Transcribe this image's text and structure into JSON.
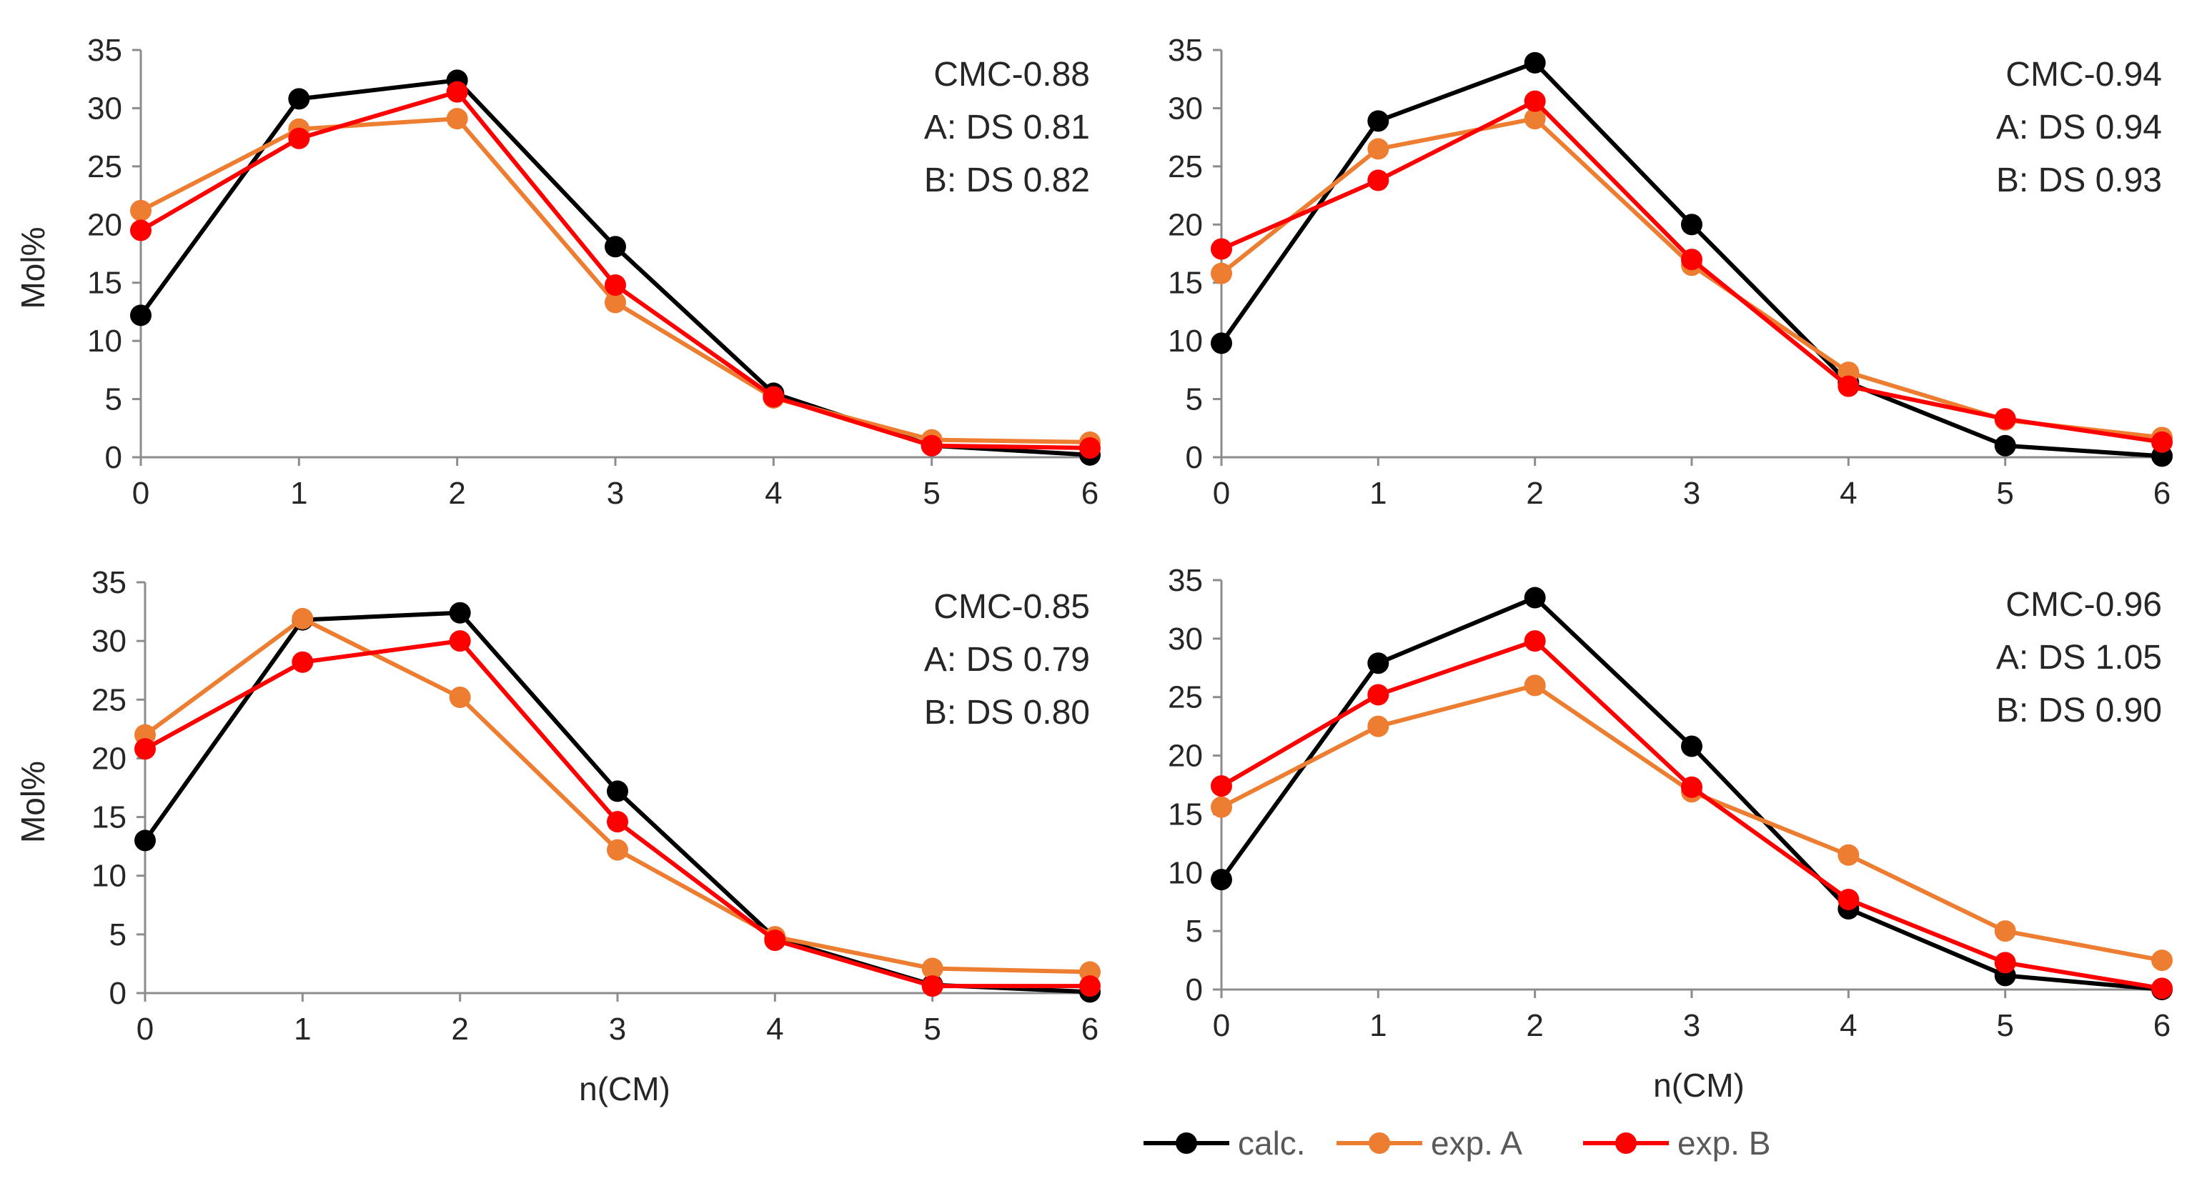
{
  "chart_data": [
    {
      "type": "line",
      "panel": "top-left",
      "title": "CMC-0.88",
      "annotations": [
        "CMC-0.88",
        "A: DS 0.81",
        "B: DS 0.82"
      ],
      "xlabel": "",
      "ylabel": "Mol%",
      "x": [
        0,
        1,
        2,
        3,
        4,
        5,
        6
      ],
      "xticks": [
        "0",
        "1",
        "2",
        "3",
        "4",
        "5",
        "6"
      ],
      "ylim": [
        0,
        35
      ],
      "yticks": [
        "0",
        "5",
        "10",
        "15",
        "20",
        "25",
        "30",
        "35"
      ],
      "grid": false,
      "series": [
        {
          "name": "calc.",
          "color": "#000000",
          "values": [
            12.2,
            30.8,
            32.4,
            18.1,
            5.5,
            1.0,
            0.2
          ]
        },
        {
          "name": "exp. A",
          "color": "#ED7D31",
          "values": [
            21.2,
            28.2,
            29.1,
            13.3,
            5.1,
            1.5,
            1.3
          ]
        },
        {
          "name": "exp. B",
          "color": "#FF0000",
          "values": [
            19.5,
            27.4,
            31.4,
            14.8,
            5.2,
            1.0,
            0.8
          ]
        }
      ]
    },
    {
      "type": "line",
      "panel": "top-right",
      "title": "CMC-0.94",
      "annotations": [
        "CMC-0.94",
        "A: DS 0.94",
        "B: DS 0.93"
      ],
      "xlabel": "",
      "ylabel": "",
      "x": [
        0,
        1,
        2,
        3,
        4,
        5,
        6
      ],
      "xticks": [
        "0",
        "1",
        "2",
        "3",
        "4",
        "5",
        "6"
      ],
      "ylim": [
        0,
        35
      ],
      "yticks": [
        "0",
        "5",
        "10",
        "15",
        "20",
        "25",
        "30",
        "35"
      ],
      "grid": false,
      "series": [
        {
          "name": "calc.",
          "color": "#000000",
          "values": [
            9.8,
            28.9,
            33.9,
            20.0,
            6.4,
            1.0,
            0.1
          ]
        },
        {
          "name": "exp. A",
          "color": "#ED7D31",
          "values": [
            15.8,
            26.5,
            29.1,
            16.5,
            7.3,
            3.2,
            1.7
          ]
        },
        {
          "name": "exp. B",
          "color": "#FF0000",
          "values": [
            17.9,
            23.8,
            30.6,
            17.0,
            6.1,
            3.3,
            1.3
          ]
        }
      ]
    },
    {
      "type": "line",
      "panel": "bottom-left",
      "title": "CMC-0.85",
      "annotations": [
        "CMC-0.85",
        "A: DS 0.79",
        "B: DS 0.80"
      ],
      "xlabel": "n(CM)",
      "ylabel": "Mol%",
      "x": [
        0,
        1,
        2,
        3,
        4,
        5,
        6
      ],
      "xticks": [
        "0",
        "1",
        "2",
        "3",
        "4",
        "5",
        "6"
      ],
      "ylim": [
        0,
        35
      ],
      "yticks": [
        "0",
        "5",
        "10",
        "15",
        "20",
        "25",
        "30",
        "35"
      ],
      "grid": false,
      "series": [
        {
          "name": "calc.",
          "color": "#000000",
          "values": [
            13.0,
            31.8,
            32.4,
            17.2,
            4.7,
            0.7,
            0.1
          ]
        },
        {
          "name": "exp. A",
          "color": "#ED7D31",
          "values": [
            22.0,
            31.9,
            25.2,
            12.2,
            4.8,
            2.1,
            1.8
          ]
        },
        {
          "name": "exp. B",
          "color": "#FF0000",
          "values": [
            20.8,
            28.2,
            30.0,
            14.6,
            4.5,
            0.6,
            0.6
          ]
        }
      ]
    },
    {
      "type": "line",
      "panel": "bottom-right",
      "title": "CMC-0.96",
      "annotations": [
        "CMC-0.96",
        "A: DS 1.05",
        "B: DS 0.90"
      ],
      "xlabel": "n(CM)",
      "ylabel": "",
      "x": [
        0,
        1,
        2,
        3,
        4,
        5,
        6
      ],
      "xticks": [
        "0",
        "1",
        "2",
        "3",
        "4",
        "5",
        "6"
      ],
      "ylim": [
        0,
        35
      ],
      "yticks": [
        "0",
        "5",
        "10",
        "15",
        "20",
        "25",
        "30",
        "35"
      ],
      "grid": false,
      "series": [
        {
          "name": "calc.",
          "color": "#000000",
          "values": [
            9.4,
            27.9,
            33.5,
            20.8,
            6.9,
            1.2,
            0.0
          ]
        },
        {
          "name": "exp. A",
          "color": "#ED7D31",
          "values": [
            15.6,
            22.5,
            26.0,
            16.9,
            11.5,
            5.0,
            2.5
          ]
        },
        {
          "name": "exp. B",
          "color": "#FF0000",
          "values": [
            17.4,
            25.2,
            29.8,
            17.3,
            7.7,
            2.3,
            0.1
          ]
        }
      ]
    }
  ],
  "legend": {
    "placement": "bottom-right",
    "items": [
      {
        "label": "calc.",
        "color": "#000000"
      },
      {
        "label": "exp. A",
        "color": "#ED7D31"
      },
      {
        "label": "exp. B",
        "color": "#FF0000"
      }
    ]
  }
}
